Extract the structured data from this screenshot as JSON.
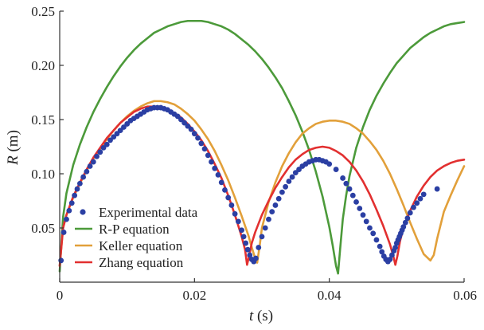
{
  "chart_data": {
    "type": "line",
    "title": "",
    "xlabel": {
      "var": "t",
      "unit": " (s)"
    },
    "ylabel": {
      "var": "R",
      "unit": " (m)"
    },
    "xlim": [
      0,
      0.06
    ],
    "ylim": [
      0,
      0.25
    ],
    "xticks": [
      0,
      0.02,
      0.04,
      0.06
    ],
    "xtick_labels": [
      "0",
      "0.02",
      "0.04",
      "0.06"
    ],
    "yticks": [
      0.05,
      0.1,
      0.15,
      0.2,
      0.25
    ],
    "ytick_labels": [
      "0.05",
      "0.10",
      "0.15",
      "0.20",
      "0.25"
    ],
    "legend_position": "bottom-left",
    "series": [
      {
        "name": "Experimental data",
        "kind": "scatter",
        "color": "#2b3fa3",
        "x": [
          0.0002,
          0.0006,
          0.001,
          0.0014,
          0.0018,
          0.0022,
          0.0026,
          0.003,
          0.0035,
          0.004,
          0.0045,
          0.005,
          0.0055,
          0.006,
          0.0065,
          0.007,
          0.0075,
          0.008,
          0.0085,
          0.009,
          0.0095,
          0.01,
          0.0105,
          0.011,
          0.0115,
          0.012,
          0.0125,
          0.013,
          0.0135,
          0.014,
          0.0145,
          0.015,
          0.0155,
          0.016,
          0.0165,
          0.017,
          0.0175,
          0.018,
          0.0185,
          0.019,
          0.0195,
          0.02,
          0.0205,
          0.021,
          0.0215,
          0.022,
          0.0225,
          0.023,
          0.0235,
          0.024,
          0.0245,
          0.025,
          0.0255,
          0.026,
          0.0265,
          0.027,
          0.0273,
          0.0276,
          0.0279,
          0.0282,
          0.0285,
          0.0288,
          0.0291,
          0.0295,
          0.03,
          0.0305,
          0.031,
          0.0315,
          0.032,
          0.0325,
          0.033,
          0.0335,
          0.034,
          0.0345,
          0.035,
          0.0355,
          0.036,
          0.0365,
          0.037,
          0.0375,
          0.038,
          0.0385,
          0.039,
          0.0395,
          0.04,
          0.041,
          0.042,
          0.0425,
          0.043,
          0.0435,
          0.044,
          0.0445,
          0.045,
          0.0455,
          0.046,
          0.0465,
          0.047,
          0.0475,
          0.0478,
          0.0481,
          0.0484,
          0.0487,
          0.049,
          0.0493,
          0.0496,
          0.0498,
          0.05,
          0.0502,
          0.0504,
          0.0506,
          0.0508,
          0.051,
          0.0513,
          0.0516,
          0.052,
          0.0525,
          0.053,
          0.0535,
          0.054,
          0.056
        ],
        "y": [
          0.02,
          0.046,
          0.058,
          0.066,
          0.073,
          0.08,
          0.086,
          0.091,
          0.097,
          0.102,
          0.107,
          0.111,
          0.116,
          0.12,
          0.124,
          0.127,
          0.131,
          0.134,
          0.137,
          0.14,
          0.143,
          0.146,
          0.149,
          0.151,
          0.153,
          0.155,
          0.157,
          0.159,
          0.16,
          0.161,
          0.161,
          0.161,
          0.16,
          0.159,
          0.157,
          0.155,
          0.153,
          0.15,
          0.147,
          0.144,
          0.141,
          0.137,
          0.133,
          0.128,
          0.123,
          0.117,
          0.111,
          0.105,
          0.099,
          0.092,
          0.085,
          0.078,
          0.071,
          0.063,
          0.056,
          0.048,
          0.042,
          0.036,
          0.03,
          0.025,
          0.021,
          0.019,
          0.022,
          0.032,
          0.042,
          0.05,
          0.058,
          0.065,
          0.071,
          0.077,
          0.083,
          0.088,
          0.093,
          0.097,
          0.101,
          0.104,
          0.107,
          0.109,
          0.111,
          0.112,
          0.113,
          0.113,
          0.112,
          0.111,
          0.109,
          0.104,
          0.096,
          0.091,
          0.086,
          0.08,
          0.074,
          0.068,
          0.062,
          0.056,
          0.05,
          0.045,
          0.039,
          0.033,
          0.028,
          0.024,
          0.021,
          0.019,
          0.021,
          0.025,
          0.029,
          0.032,
          0.036,
          0.039,
          0.042,
          0.045,
          0.048,
          0.051,
          0.055,
          0.059,
          0.064,
          0.069,
          0.073,
          0.077,
          0.081,
          0.086
        ]
      },
      {
        "name": "R-P equation",
        "kind": "line",
        "color": "#4c9a3a",
        "x": [
          0,
          0.0005,
          0.001,
          0.002,
          0.003,
          0.004,
          0.005,
          0.006,
          0.007,
          0.008,
          0.009,
          0.01,
          0.011,
          0.012,
          0.013,
          0.014,
          0.015,
          0.016,
          0.017,
          0.018,
          0.019,
          0.02,
          0.021,
          0.022,
          0.023,
          0.024,
          0.025,
          0.026,
          0.027,
          0.028,
          0.029,
          0.03,
          0.031,
          0.032,
          0.033,
          0.034,
          0.035,
          0.036,
          0.037,
          0.038,
          0.039,
          0.04,
          0.0405,
          0.041,
          0.0413,
          0.0416,
          0.042,
          0.0425,
          0.043,
          0.044,
          0.045,
          0.046,
          0.047,
          0.048,
          0.049,
          0.05,
          0.051,
          0.052,
          0.053,
          0.054,
          0.055,
          0.056,
          0.057,
          0.058,
          0.059,
          0.06
        ],
        "y": [
          0.01,
          0.06,
          0.082,
          0.108,
          0.127,
          0.143,
          0.157,
          0.169,
          0.18,
          0.19,
          0.199,
          0.207,
          0.214,
          0.22,
          0.225,
          0.23,
          0.233,
          0.236,
          0.238,
          0.24,
          0.241,
          0.241,
          0.241,
          0.24,
          0.238,
          0.236,
          0.233,
          0.229,
          0.224,
          0.219,
          0.213,
          0.206,
          0.198,
          0.189,
          0.179,
          0.167,
          0.154,
          0.139,
          0.122,
          0.102,
          0.079,
          0.051,
          0.034,
          0.015,
          0.008,
          0.03,
          0.058,
          0.08,
          0.098,
          0.124,
          0.143,
          0.159,
          0.172,
          0.183,
          0.193,
          0.202,
          0.209,
          0.216,
          0.221,
          0.226,
          0.23,
          0.233,
          0.236,
          0.238,
          0.239,
          0.24
        ]
      },
      {
        "name": "Keller equation",
        "kind": "line",
        "color": "#e2a03a",
        "x": [
          0,
          0.0005,
          0.001,
          0.002,
          0.003,
          0.004,
          0.005,
          0.006,
          0.007,
          0.008,
          0.009,
          0.01,
          0.011,
          0.012,
          0.013,
          0.014,
          0.015,
          0.016,
          0.017,
          0.018,
          0.019,
          0.02,
          0.021,
          0.022,
          0.023,
          0.024,
          0.025,
          0.026,
          0.027,
          0.028,
          0.0285,
          0.029,
          0.0293,
          0.0297,
          0.03,
          0.031,
          0.032,
          0.033,
          0.034,
          0.035,
          0.036,
          0.037,
          0.038,
          0.039,
          0.04,
          0.041,
          0.042,
          0.043,
          0.044,
          0.045,
          0.046,
          0.047,
          0.048,
          0.049,
          0.05,
          0.051,
          0.052,
          0.053,
          0.054,
          0.055,
          0.0555,
          0.056,
          0.057,
          0.058,
          0.059,
          0.06
        ],
        "y": [
          0.015,
          0.05,
          0.062,
          0.078,
          0.091,
          0.103,
          0.114,
          0.123,
          0.132,
          0.14,
          0.147,
          0.153,
          0.158,
          0.162,
          0.165,
          0.167,
          0.167,
          0.166,
          0.164,
          0.16,
          0.155,
          0.149,
          0.141,
          0.132,
          0.121,
          0.108,
          0.094,
          0.078,
          0.061,
          0.043,
          0.032,
          0.022,
          0.018,
          0.035,
          0.05,
          0.074,
          0.092,
          0.107,
          0.119,
          0.129,
          0.137,
          0.142,
          0.146,
          0.148,
          0.149,
          0.149,
          0.148,
          0.146,
          0.142,
          0.137,
          0.13,
          0.122,
          0.112,
          0.1,
          0.086,
          0.071,
          0.055,
          0.04,
          0.026,
          0.02,
          0.025,
          0.04,
          0.065,
          0.08,
          0.094,
          0.107
        ]
      },
      {
        "name": "Zhang equation",
        "kind": "line",
        "color": "#e23030",
        "x": [
          0,
          0.0005,
          0.001,
          0.002,
          0.003,
          0.004,
          0.005,
          0.006,
          0.007,
          0.008,
          0.009,
          0.01,
          0.011,
          0.012,
          0.013,
          0.014,
          0.015,
          0.016,
          0.017,
          0.018,
          0.019,
          0.02,
          0.021,
          0.022,
          0.023,
          0.024,
          0.025,
          0.026,
          0.027,
          0.0275,
          0.0278,
          0.0281,
          0.0285,
          0.029,
          0.03,
          0.031,
          0.032,
          0.033,
          0.034,
          0.035,
          0.036,
          0.037,
          0.038,
          0.039,
          0.04,
          0.041,
          0.042,
          0.043,
          0.044,
          0.045,
          0.046,
          0.047,
          0.048,
          0.049,
          0.0495,
          0.0498,
          0.0501,
          0.0505,
          0.051,
          0.052,
          0.053,
          0.054,
          0.055,
          0.056,
          0.057,
          0.058,
          0.059,
          0.06
        ],
        "y": [
          0.015,
          0.05,
          0.062,
          0.079,
          0.092,
          0.104,
          0.115,
          0.124,
          0.133,
          0.14,
          0.147,
          0.152,
          0.157,
          0.16,
          0.162,
          0.162,
          0.161,
          0.159,
          0.156,
          0.152,
          0.146,
          0.139,
          0.131,
          0.121,
          0.109,
          0.096,
          0.08,
          0.062,
          0.042,
          0.03,
          0.016,
          0.024,
          0.036,
          0.046,
          0.062,
          0.075,
          0.087,
          0.097,
          0.106,
          0.113,
          0.118,
          0.122,
          0.124,
          0.125,
          0.124,
          0.121,
          0.117,
          0.111,
          0.103,
          0.093,
          0.081,
          0.067,
          0.052,
          0.035,
          0.024,
          0.016,
          0.024,
          0.038,
          0.05,
          0.066,
          0.079,
          0.089,
          0.097,
          0.103,
          0.107,
          0.11,
          0.112,
          0.113
        ]
      }
    ]
  }
}
